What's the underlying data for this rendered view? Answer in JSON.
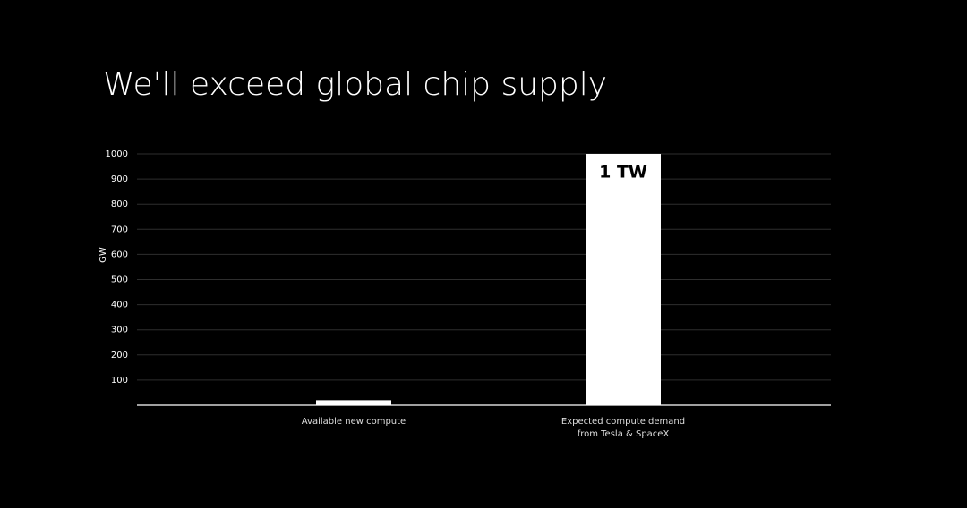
{
  "chart_data": {
    "type": "bar",
    "title": "We'll exceed global chip supply",
    "y_label": "GW",
    "categories": [
      "Available new compute",
      "Expected compute demand\nfrom Tesla & SpaceX"
    ],
    "values": [
      20,
      1000
    ],
    "value_labels": [
      null,
      "1 TW"
    ],
    "color": "#ffffff",
    "ylim": [
      0,
      1000
    ],
    "yticks": [
      100,
      200,
      300,
      400,
      500,
      600,
      700,
      800,
      900,
      1000
    ],
    "grid": true
  }
}
